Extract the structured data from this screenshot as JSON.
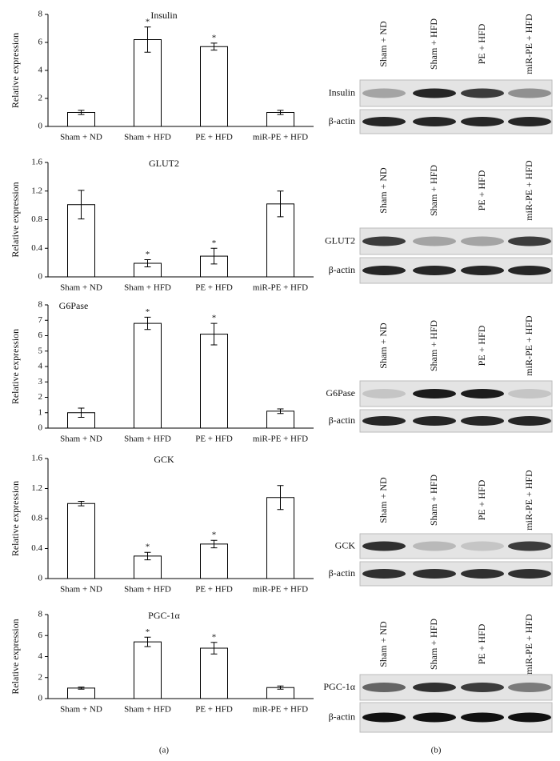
{
  "chart_data": [
    {
      "type": "bar",
      "title": "Insulin",
      "ylabel": "Relative expression",
      "categories": [
        "Sham + ND",
        "Sham + HFD",
        "PE + HFD",
        "miR-PE + HFD"
      ],
      "values": [
        1.0,
        6.2,
        5.7,
        1.0
      ],
      "errors": [
        0.15,
        0.9,
        0.25,
        0.15
      ],
      "significance": [
        null,
        "*",
        "*",
        null
      ],
      "color": "#ffffff",
      "ylim": [
        0,
        8
      ],
      "yticks": [
        0,
        2,
        4,
        6,
        8
      ]
    },
    {
      "type": "bar",
      "title": "GLUT2",
      "ylabel": "Relative expression",
      "categories": [
        "Sham + ND",
        "Sham + HFD",
        "PE + HFD",
        "miR-PE + HFD"
      ],
      "values": [
        1.01,
        0.19,
        0.29,
        1.02
      ],
      "errors": [
        0.2,
        0.05,
        0.11,
        0.18
      ],
      "significance": [
        null,
        "*",
        "*",
        null
      ],
      "color": "#ffffff",
      "ylim": [
        0,
        1.6
      ],
      "yticks": [
        0,
        0.4,
        0.8,
        1.2,
        1.6
      ]
    },
    {
      "type": "bar",
      "title": "G6Pase",
      "ylabel": "Relative expression",
      "categories": [
        "Sham + ND",
        "Sham + HFD",
        "PE + HFD",
        "miR-PE + HFD"
      ],
      "values": [
        1.0,
        6.8,
        6.1,
        1.1
      ],
      "errors": [
        0.3,
        0.4,
        0.7,
        0.15
      ],
      "significance": [
        null,
        "*",
        "*",
        null
      ],
      "color": "#ffffff",
      "ylim": [
        0,
        8
      ],
      "yticks": [
        0,
        1,
        2,
        3,
        4,
        5,
        6,
        7,
        8
      ]
    },
    {
      "type": "bar",
      "title": "GCK",
      "ylabel": "Relative expression",
      "categories": [
        "Sham + ND",
        "Sham + HFD",
        "PE + HFD",
        "miR-PE + HFD"
      ],
      "values": [
        1.0,
        0.3,
        0.46,
        1.08
      ],
      "errors": [
        0.03,
        0.05,
        0.05,
        0.16
      ],
      "significance": [
        null,
        "*",
        "*",
        null
      ],
      "color": "#ffffff",
      "ylim": [
        0,
        1.6
      ],
      "yticks": [
        0,
        0.4,
        0.8,
        1.2,
        1.6
      ]
    },
    {
      "type": "bar",
      "title": "PGC-1α",
      "ylabel": "Relative expression",
      "categories": [
        "Sham + ND",
        "Sham + HFD",
        "PE + HFD",
        "miR-PE + HFD"
      ],
      "values": [
        1.0,
        5.4,
        4.8,
        1.05
      ],
      "errors": [
        0.1,
        0.45,
        0.55,
        0.15
      ],
      "significance": [
        null,
        "*",
        "*",
        null
      ],
      "color": "#ffffff",
      "ylim": [
        0,
        8
      ],
      "yticks": [
        0,
        2,
        4,
        6,
        8
      ]
    }
  ],
  "blots": [
    {
      "lanes": [
        "Sham + ND",
        "Sham + HFD",
        "PE + HFD",
        "miR-PE + HFD"
      ],
      "rows": [
        "Insulin",
        "β-actin"
      ]
    },
    {
      "lanes": [
        "Sham + ND",
        "Sham + HFD",
        "PE + HFD",
        "miR-PE + HFD"
      ],
      "rows": [
        "GLUT2",
        "β-actin"
      ]
    },
    {
      "lanes": [
        "Sham + ND",
        "Sham + HFD",
        "PE + HFD",
        "miR-PE + HFD"
      ],
      "rows": [
        "G6Pase",
        "β-actin"
      ]
    },
    {
      "lanes": [
        "Sham + ND",
        "Sham + HFD",
        "PE + HFD",
        "miR-PE + HFD"
      ],
      "rows": [
        "GCK",
        "β-actin"
      ]
    },
    {
      "lanes": [
        "Sham + ND",
        "Sham + HFD",
        "PE + HFD",
        "miR-PE + HFD"
      ],
      "rows": [
        "PGC-1α",
        "β-actin"
      ]
    }
  ],
  "panel_labels": [
    "(a)",
    "(b)"
  ]
}
